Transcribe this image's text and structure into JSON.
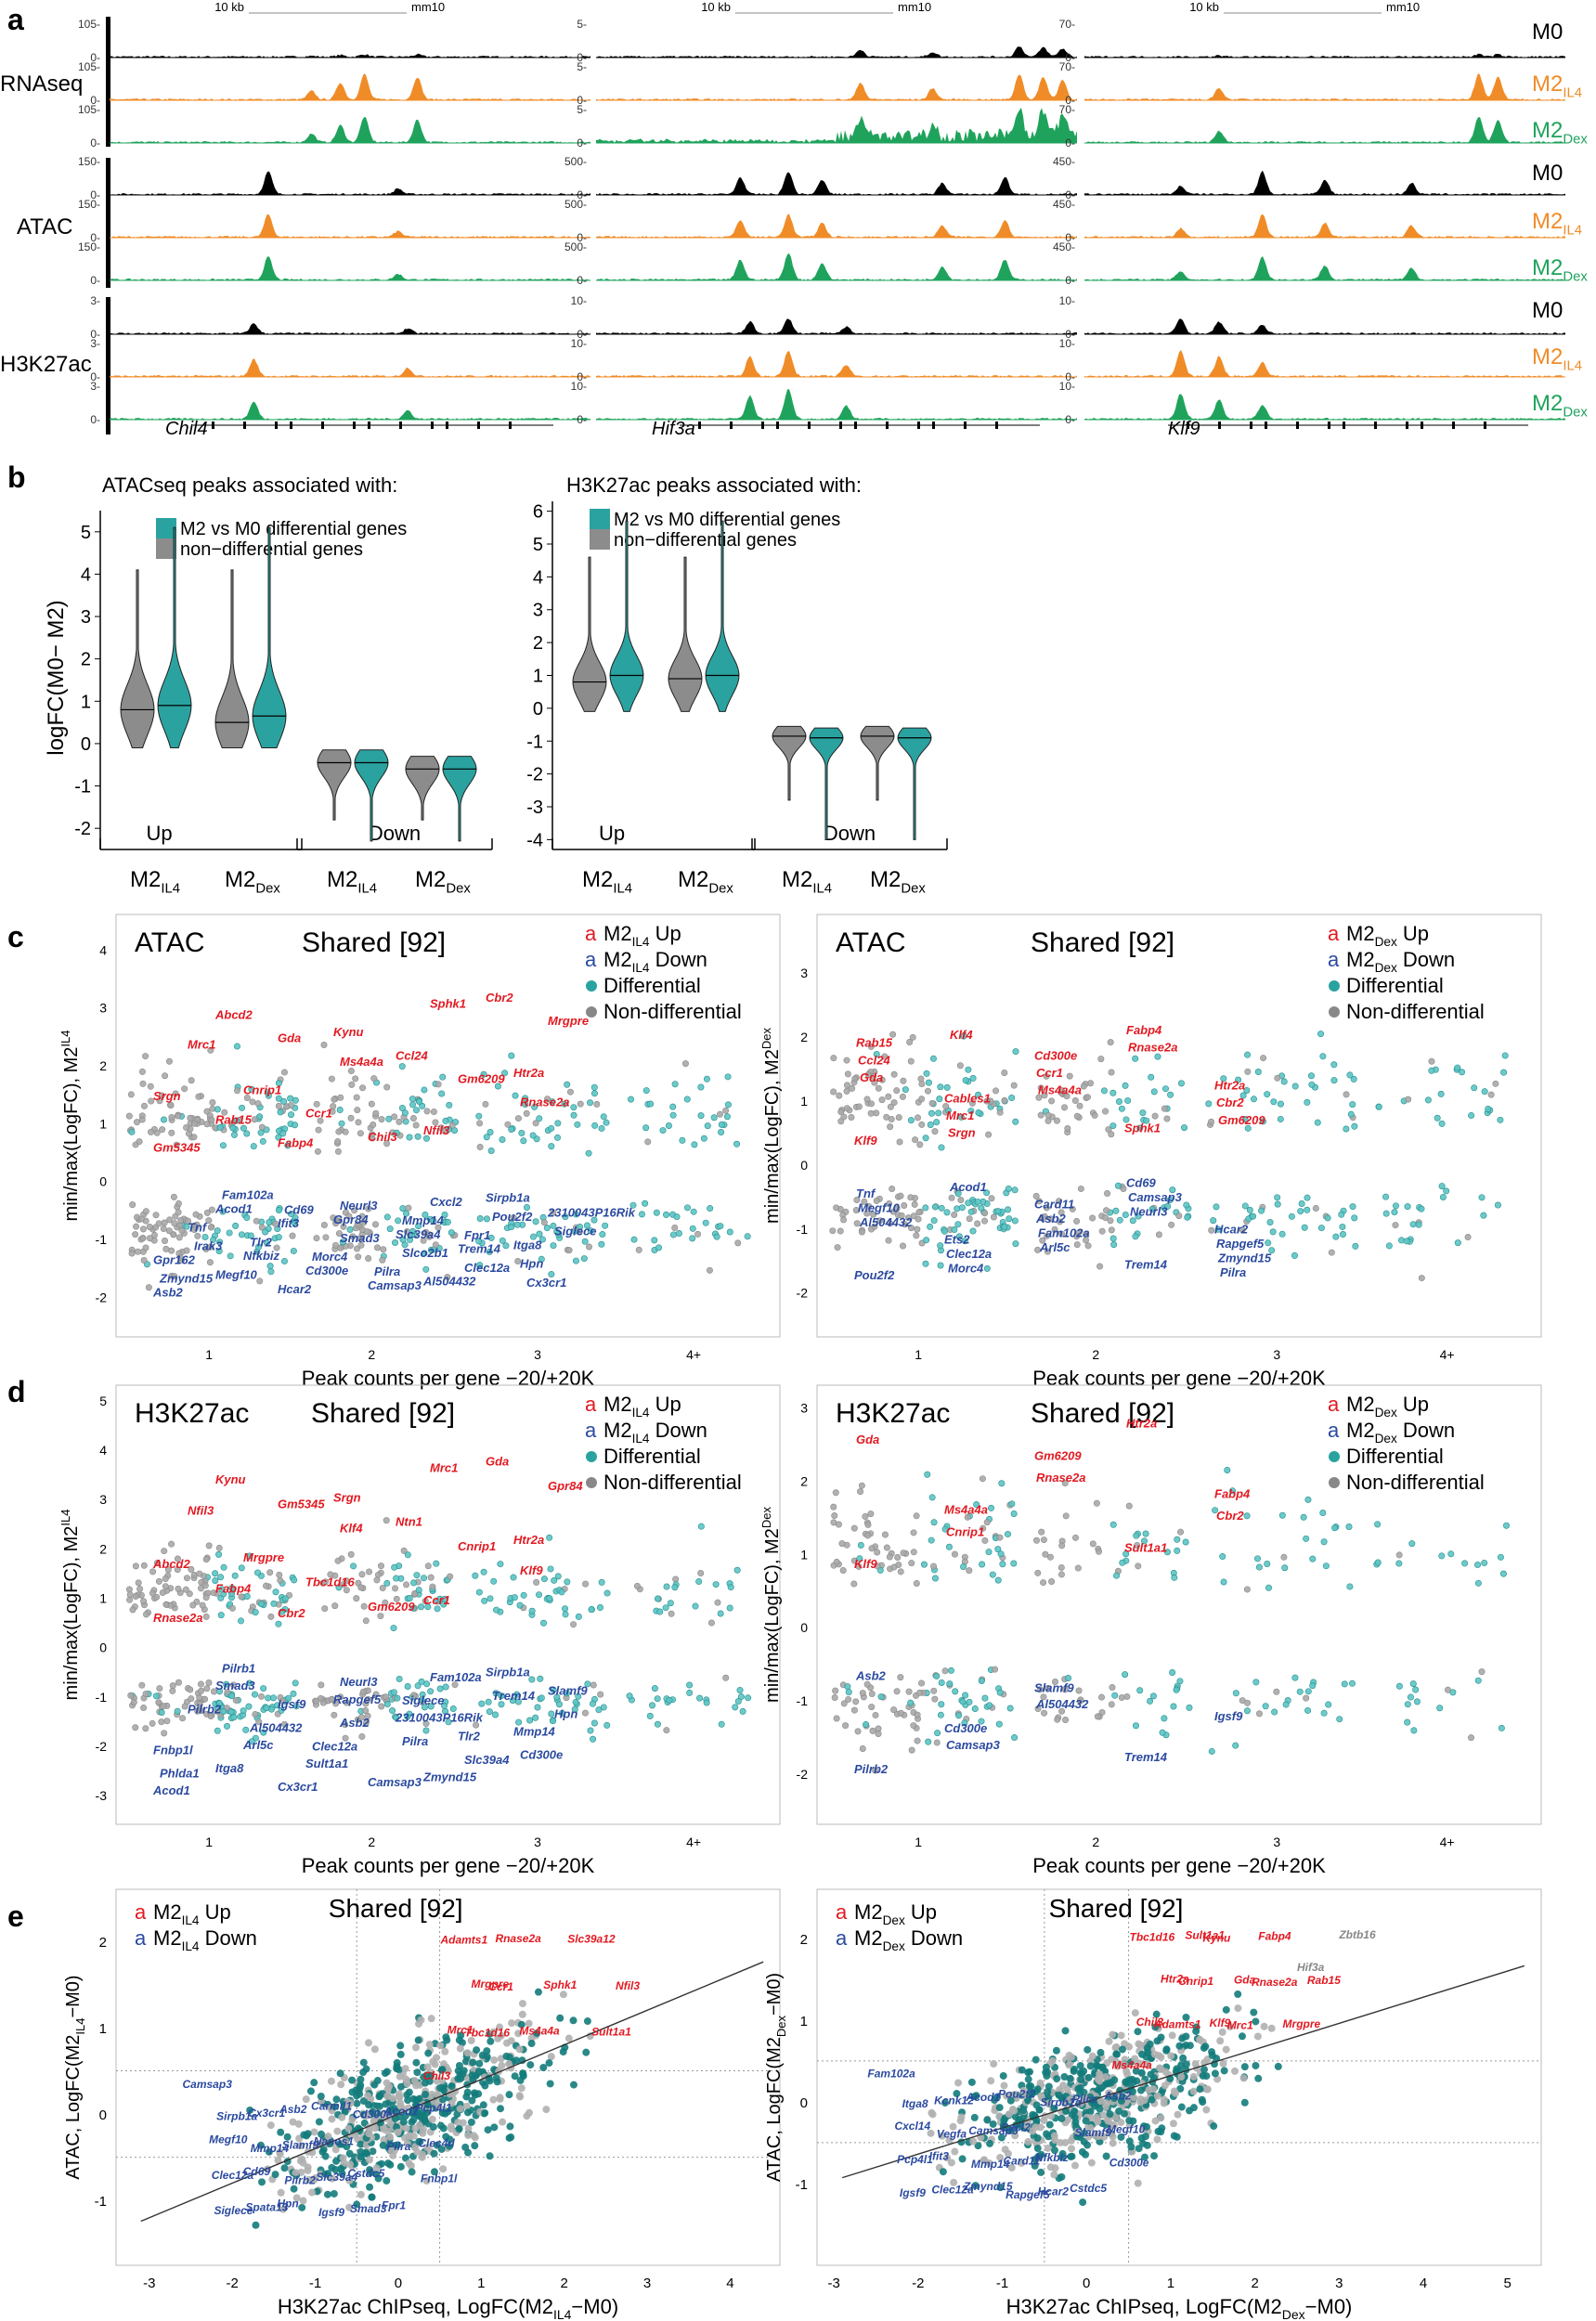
{
  "figure": {
    "panel_letters": [
      "a",
      "b",
      "c",
      "d",
      "e"
    ],
    "colors": {
      "m0": "#000000",
      "m2il4": "#f08c28",
      "m2dex": "#1fa35c",
      "teal": "#2aa3a0",
      "teal_dark": "#137b7b",
      "grey": "#9a9a9a",
      "red": "#e21a22",
      "blue": "#2b4aa0"
    }
  },
  "panel_a": {
    "scale_label": "10 kb",
    "genome": "mm10",
    "row_labels": [
      "RNAseq",
      "ATAC",
      "H3K27ac"
    ],
    "genes": [
      "Chil4",
      "Hif3a",
      "Klf9"
    ],
    "legend": [
      {
        "label": "M0",
        "sub": ""
      },
      {
        "label": "M2",
        "sub": "IL4"
      },
      {
        "label": "M2",
        "sub": "Dex"
      }
    ],
    "col_ticks": [
      {
        "rna": [
          "105-",
          "0-",
          "105-",
          "0-",
          "105-",
          "0-"
        ],
        "atac": [
          "150-",
          "0-",
          "150-",
          "0-",
          "150-",
          "0-"
        ],
        "h3": [
          "3-",
          "0-",
          "3-",
          "0-",
          "3-",
          "0-"
        ]
      },
      {
        "rna": [
          "5-",
          "0-",
          "5-",
          "0-",
          "5-",
          "0-"
        ],
        "atac": [
          "500-",
          "0-",
          "500-",
          "0-",
          "500-",
          "0-"
        ],
        "h3": [
          "10-",
          "0-",
          "10-",
          "0-",
          "10-",
          "0-"
        ]
      },
      {
        "rna": [
          "70-",
          "0-",
          "70-",
          "0-",
          "70-",
          "0-"
        ],
        "atac": [
          "450-",
          "0-",
          "450-",
          "0-",
          "450-",
          "0-"
        ],
        "h3": [
          "10-",
          "0-",
          "10-",
          "0-",
          "10-",
          "0-"
        ]
      }
    ]
  },
  "panel_b": {
    "titles": [
      "ATACseq peaks associated with:",
      "H3K27ac peaks associated with:"
    ],
    "legend": [
      "M2 vs M0 differential genes",
      "non−differential genes"
    ],
    "ylabel": "logFC(M0− M2)",
    "group_labels": [
      "Up",
      "Down"
    ],
    "x_labels": [
      {
        "main": "M2",
        "sub": "IL4"
      },
      {
        "main": "M2",
        "sub": "Dex"
      },
      {
        "main": "M2",
        "sub": "IL4"
      },
      {
        "main": "M2",
        "sub": "Dex"
      }
    ],
    "chart_data": [
      {
        "type": "violin",
        "title": "ATACseq peaks associated with:",
        "ylim": [
          -2.5,
          5.5
        ],
        "yticks": [
          "5",
          "4",
          "3",
          "2",
          "1",
          "0",
          "-1",
          "-2"
        ],
        "series": [
          {
            "name": "non−differential genes",
            "medians": [
              0.8,
              0.5,
              -0.45,
              -0.6
            ]
          },
          {
            "name": "M2 vs M0 differential genes",
            "medians": [
              0.9,
              0.65,
              -0.45,
              -0.6
            ]
          }
        ]
      },
      {
        "type": "violin",
        "title": "H3K27ac peaks associated with:",
        "ylim": [
          -4.3,
          6.3
        ],
        "yticks": [
          "6",
          "5",
          "4",
          "3",
          "2",
          "1",
          "0",
          "-1",
          "-2",
          "-3",
          "-4"
        ],
        "series": [
          {
            "name": "non−differential genes",
            "medians": [
              0.8,
              0.9,
              -0.85,
              -0.85
            ]
          },
          {
            "name": "M2 vs M0 differential genes",
            "medians": [
              1.0,
              1.0,
              -0.9,
              -0.9
            ]
          }
        ]
      }
    ]
  },
  "panel_c": {
    "left": {
      "title": "ATAC",
      "shared": "Shared [92]",
      "ylabel": "min/max(LogFC), M2",
      "ylabel_sub": "IL4",
      "xlabel": "Peak counts per gene −20/+20K",
      "legend": [
        {
          "a": "a",
          "label": "M2",
          "sub": "IL4",
          "tail": " Up"
        },
        {
          "a": "a",
          "label": "M2",
          "sub": "IL4",
          "tail": " Down"
        },
        {
          "label": "Differential"
        },
        {
          "label": "Non-differential"
        }
      ],
      "xticks": [
        "1",
        "2",
        "3",
        "4+"
      ],
      "yticks": [
        "4",
        "3",
        "2",
        "1",
        "0",
        "-1",
        "-2"
      ],
      "up_genes": [
        "Gm5345",
        "Cnrip1",
        "Kynu",
        "Nfil3",
        "Htr2a",
        "Abcd2",
        "Ccr1",
        "Ccl24",
        "Cbr2",
        "Srgn",
        "Gda",
        "Chil3",
        "Gm6209",
        "Mrgpre",
        "Rab15",
        "Ms4a4a",
        "Sphk1",
        "Rnase2a",
        "Mrc1",
        "Fabp4"
      ],
      "down_genes": [
        "Asb2",
        "Nfkbiz",
        "Gpr84",
        "Al504432",
        "Itga8",
        "Acod1",
        "Cd300e",
        "Slc39a4",
        "Sirpb1a",
        "Gpr162",
        "Ifit3",
        "Camsap3",
        "Trem14",
        "2310043P16Rik",
        "Megf10",
        "Smad3",
        "Cxcl2",
        "Hpn",
        "Tnf",
        "Hcar2",
        "Slco2b1",
        "Pou2f2",
        "Zmynd15",
        "Tlr2",
        "Neurl3",
        "Clec12a",
        "Siglece",
        "Fam102a",
        "Morc4",
        "Mmp14",
        "Cx3cr1",
        "Irak3",
        "Cd69",
        "Pilra",
        "Fpr1"
      ]
    },
    "right": {
      "title": "ATAC",
      "shared": "Shared [92]",
      "ylabel": "min/max(LogFC), M2",
      "ylabel_sub": "Dex",
      "xlabel": "Peak counts per gene −20/+20K",
      "legend": [
        {
          "a": "a",
          "label": "M2",
          "sub": "Dex",
          "tail": " Up"
        },
        {
          "a": "a",
          "label": "M2",
          "sub": "Dex",
          "tail": " Down"
        },
        {
          "label": "Differential"
        },
        {
          "label": "Non-differential"
        }
      ],
      "xticks": [
        "1",
        "2",
        "3",
        "4+"
      ],
      "yticks": [
        "3",
        "2",
        "1",
        "0",
        "-1",
        "-2"
      ],
      "up_genes": [
        "Klf9",
        "Cables1",
        "Cd300e",
        "Sphk1",
        "Htr2a",
        "Rab15",
        "Mrc1",
        "Ccr1",
        "Fabp4",
        "Cbr2",
        "Ccl24",
        "Srgn",
        "Ms4a4a",
        "Rnase2a",
        "Gm6209",
        "Gda",
        "Klf4"
      ],
      "down_genes": [
        "Pou2f2",
        "Ets2",
        "Card11",
        "Trem14",
        "Hcar2",
        "Tnf",
        "Clec12a",
        "Asb2",
        "Cd69",
        "Rapgef5",
        "Megf10",
        "Morc4",
        "Fam102a",
        "Camsap3",
        "Zmynd15",
        "Al504432",
        "Acod1",
        "Arl5c",
        "Neurl3",
        "Pilra"
      ]
    }
  },
  "panel_d": {
    "left": {
      "title": "H3K27ac",
      "shared": "Shared [92]",
      "ylabel": "min/max(LogFC), M2",
      "ylabel_sub": "IL4",
      "xlabel": "Peak counts per gene −20/+20K",
      "legend": [
        {
          "a": "a",
          "label": "M2",
          "sub": "IL4",
          "tail": " Up"
        },
        {
          "a": "a",
          "label": "M2",
          "sub": "IL4",
          "tail": " Down"
        },
        {
          "label": "Differential"
        },
        {
          "label": "Non-differential"
        }
      ],
      "xticks": [
        "1",
        "2",
        "3",
        "4+"
      ],
      "yticks": [
        "5",
        "4",
        "3",
        "2",
        "1",
        "0",
        "-1",
        "-2",
        "-3"
      ],
      "up_genes": [
        "Rnase2a",
        "Mrgpre",
        "Srgn",
        "Ccr1",
        "Htr2a",
        "Kynu",
        "Tbc1d16",
        "Ntn1",
        "Gda",
        "Abcd2",
        "Gm5345",
        "Gm6209",
        "Cnrip1",
        "Gpr84",
        "Fabp4",
        "Klf4",
        "Mrc1",
        "Klf9",
        "Nfil3",
        "Cbr2"
      ],
      "down_genes": [
        "Acod1",
        "Arl5c",
        "Rapgef5",
        "Zmynd15",
        "Mmp14",
        "Smad3",
        "Sult1a1",
        "2310043P16Rik",
        "Sirpb1a",
        "Fnbp1l",
        "Igsf9",
        "Camsap3",
        "Tlr2",
        "Slamf9",
        "Itga8",
        "Asb2",
        "Fam102a",
        "Cd300e",
        "Pilrb2",
        "Cx3cr1",
        "Pilra",
        "Trem14",
        "Phlda1",
        "Al504432",
        "Neurl3",
        "Slc39a4",
        "Hpn",
        "Pilrb1",
        "Clec12a",
        "Siglece"
      ]
    },
    "right": {
      "title": "H3K27ac",
      "shared": "Shared [92]",
      "ylabel": "min/max(LogFC), M2",
      "ylabel_sub": "Dex",
      "xlabel": "Peak counts per gene −20/+20K",
      "legend": [
        {
          "a": "a",
          "label": "M2",
          "sub": "Dex",
          "tail": " Up"
        },
        {
          "a": "a",
          "label": "M2",
          "sub": "Dex",
          "tail": " Down"
        },
        {
          "label": "Differential"
        },
        {
          "label": "Non-differential"
        }
      ],
      "xticks": [
        "1",
        "2",
        "3",
        "4+"
      ],
      "yticks": [
        "3",
        "2",
        "1",
        "0",
        "-1",
        "-2"
      ],
      "up_genes": [
        "Klf9",
        "Ms4a4a",
        "Gm6209",
        "Sult1a1",
        "Fabp4",
        "Gda",
        "Cnrip1",
        "Rnase2a",
        "Htr2a",
        "Cbr2"
      ],
      "down_genes": [
        "Pilrb2",
        "Cd300e",
        "Slamf9",
        "Trem14",
        "Igsf9",
        "Asb2",
        "Camsap3",
        "Al504432"
      ]
    }
  },
  "panel_e": {
    "left": {
      "shared": "Shared [92]",
      "ylabel": "ATAC, LogFC(M2",
      "ylabel_sub": "IL4",
      "ylabel_tail": "−M0)",
      "xlabel": "H3K27ac ChIPseq, LogFC(M2",
      "xlabel_sub": "IL4",
      "xlabel_tail": "−M0)",
      "legend": [
        {
          "a": "a",
          "label": "M2",
          "sub": "IL4",
          "tail": " Up"
        },
        {
          "a": "a",
          "label": "M2",
          "sub": "IL4",
          "tail": " Down"
        }
      ],
      "xticks": [
        "-3",
        "-2",
        "-1",
        "0",
        "1",
        "2",
        "3",
        "4"
      ],
      "yticks": [
        "2",
        "1",
        "0",
        "-1"
      ],
      "up_genes": [
        "Chil3",
        "Mrc1",
        "Mrgpre",
        "Rnase2a",
        "Ms4a4a",
        "Sphk1",
        "Slc39a12",
        "Sult1a1",
        "Nfil3",
        "Adamts1",
        "Tbc1d16",
        "Ccr1"
      ],
      "down_genes": [
        "Camsap3",
        "Sirpb1a",
        "Mmp14",
        "Pilrb2",
        "Igsf9",
        "Cd300e",
        "Pilra",
        "Fnbp1l",
        "Siglece",
        "Cx3cr1",
        "Slamf9",
        "Slc39a4",
        "Smad3",
        "Acod1",
        "Clec4d",
        "Clec12a",
        "Spata13",
        "Asb2",
        "Nanos1",
        "Cstdc5",
        "Fpr1",
        "Pcp4l1",
        "Megf10",
        "Cd69",
        "Hpn",
        "Carmil1"
      ]
    },
    "right": {
      "shared": "Shared [92]",
      "ylabel": "ATAC, LogFC(M2",
      "ylabel_sub": "Dex",
      "ylabel_tail": "−M0)",
      "xlabel": "H3K27ac ChIPseq, LogFC(M2",
      "xlabel_sub": "Dex",
      "xlabel_tail": "−M0)",
      "legend": [
        {
          "a": "a",
          "label": "M2",
          "sub": "Dex",
          "tail": " Up"
        },
        {
          "a": "a",
          "label": "M2",
          "sub": "Dex",
          "tail": " Down"
        }
      ],
      "xticks": [
        "-3",
        "-2",
        "-1",
        "0",
        "1",
        "2",
        "3",
        "4",
        "5"
      ],
      "yticks": [
        "2",
        "1",
        "0",
        "-1"
      ],
      "up_genes": [
        "Ms4a4a",
        "Chil3",
        "Htr2a",
        "Sult1a1",
        "Klf9",
        "Gda",
        "Fabp4",
        "Mrgpre",
        "Rab15",
        "Tbc1d16",
        "Adamts1",
        "Cnrip1",
        "Kynu",
        "Mrc1",
        "Rnase2a"
      ],
      "down_genes": [
        "Fam102a",
        "Itga8",
        "Vegfa",
        "Mmp14",
        "Rapgef5",
        "Sirpb1a",
        "Slamf9",
        "Cd300e",
        "Igsf9",
        "Kcnk12",
        "Camsap3",
        "Card11",
        "Hcar2",
        "Pilra",
        "Megf10",
        "Pcp4l1",
        "Clec12a",
        "Acod1",
        "Cxcl2",
        "Nfkbiz",
        "Cstdc5",
        "Asb2",
        "Cxcl14",
        "Ifit3",
        "Zmynd15",
        "Pou2f2"
      ],
      "grey_genes": [
        "Zbtb16",
        "Hif3a"
      ]
    }
  }
}
